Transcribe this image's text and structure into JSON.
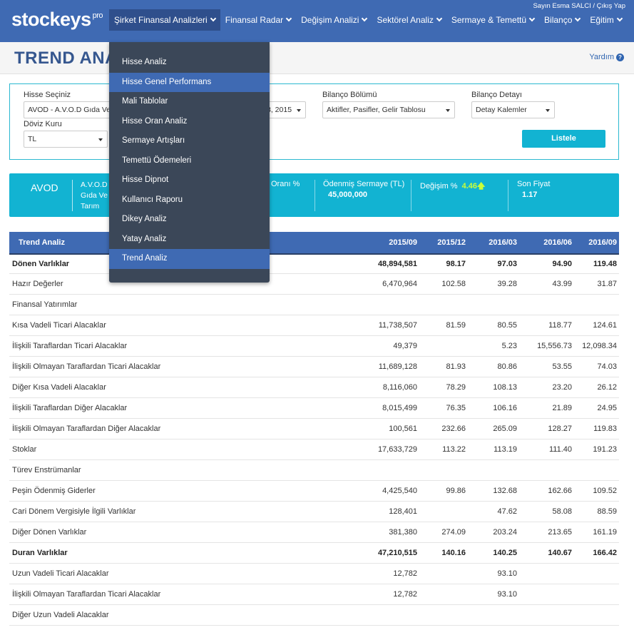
{
  "header": {
    "logo": "stockeys",
    "logo_sup": "pro",
    "user_text": "Sayın Esma SALCI / Çıkış Yap",
    "nav": [
      {
        "label": "Şirket Finansal Analizleri"
      },
      {
        "label": "Finansal Radar"
      },
      {
        "label": "Değişim Analizi"
      },
      {
        "label": "Sektörel Analiz"
      },
      {
        "label": "Sermaye & Temettü"
      },
      {
        "label": "Bilanço"
      },
      {
        "label": "Eğitim"
      }
    ]
  },
  "page": {
    "title": "TREND ANA",
    "help": "Yardım",
    "help_icon": "?"
  },
  "dropdown": {
    "items": [
      {
        "label": "Hisse Analiz"
      },
      {
        "label": "Hisse Genel Performans"
      },
      {
        "label": "Mali Tablolar"
      },
      {
        "label": "Hisse Oran Analiz"
      },
      {
        "label": "Sermaye Artışları"
      },
      {
        "label": "Temettü Ödemeleri"
      },
      {
        "label": "Hisse Dipnot"
      },
      {
        "label": "Kullanıcı Raporu"
      },
      {
        "label": "Dikey Analiz"
      },
      {
        "label": "Yatay Analiz"
      },
      {
        "label": "Trend Analiz"
      }
    ]
  },
  "filters": {
    "hisse_label": "Hisse Seçiniz",
    "hisse_value": "AVOD - A.V.O.D Gıda Ve",
    "period_value": "3, 2015",
    "bolum_label": "Bilanço Bölümü",
    "bolum_value": "Aktifler, Pasifler, Gelir Tablosu",
    "detay_label": "Bilanço Detayı",
    "detay_value": "Detay Kalemler",
    "doviz_label": "Döviz Kuru",
    "doviz_value": "TL",
    "list_button": "Listele"
  },
  "info": {
    "ticker": "AVOD",
    "name": "A.V.O.D Gıda Ve Tarım",
    "oran_label": "Oranı %",
    "sermaye_label": "Ödenmiş Sermaye (TL)",
    "sermaye_value": "45,000,000",
    "degisim_label": "Değişim %",
    "degisim_value": "4.46",
    "fiyat_label": "Son Fiyat",
    "fiyat_value": "1.17"
  },
  "table": {
    "headers": [
      "Trend Analiz",
      "2015/09",
      "2015/12",
      "2016/03",
      "2016/06",
      "2016/09"
    ],
    "rows": [
      {
        "label": "Dönen Varlıklar",
        "bold": true,
        "v": [
          "48,894,581",
          "98.17",
          "97.03",
          "94.90",
          "119.48"
        ]
      },
      {
        "label": "Hazır Değerler",
        "bold": false,
        "v": [
          "6,470,964",
          "102.58",
          "39.28",
          "43.99",
          "31.87"
        ]
      },
      {
        "label": "Finansal Yatırımlar",
        "bold": false,
        "v": [
          "",
          "",
          "",
          "",
          ""
        ]
      },
      {
        "label": "Kısa Vadeli Ticari Alacaklar",
        "bold": false,
        "v": [
          "11,738,507",
          "81.59",
          "80.55",
          "118.77",
          "124.61"
        ]
      },
      {
        "label": "İlişkili Taraflardan Ticari Alacaklar",
        "bold": false,
        "v": [
          "49,379",
          "",
          "5.23",
          "15,556.73",
          "12,098.34"
        ]
      },
      {
        "label": "İlişkili Olmayan Taraflardan Ticari Alacaklar",
        "bold": false,
        "v": [
          "11,689,128",
          "81.93",
          "80.86",
          "53.55",
          "74.03"
        ]
      },
      {
        "label": "Diğer Kısa Vadeli Alacaklar",
        "bold": false,
        "v": [
          "8,116,060",
          "78.29",
          "108.13",
          "23.20",
          "26.12"
        ]
      },
      {
        "label": "İlişkili Taraflardan Diğer Alacaklar",
        "bold": false,
        "v": [
          "8,015,499",
          "76.35",
          "106.16",
          "21.89",
          "24.95"
        ]
      },
      {
        "label": "İlişkili Olmayan Taraflardan Diğer Alacaklar",
        "bold": false,
        "v": [
          "100,561",
          "232.66",
          "265.09",
          "128.27",
          "119.83"
        ]
      },
      {
        "label": "Stoklar",
        "bold": false,
        "v": [
          "17,633,729",
          "113.22",
          "113.19",
          "111.40",
          "191.23"
        ]
      },
      {
        "label": "Türev Enstrümanlar",
        "bold": false,
        "v": [
          "",
          "",
          "",
          "",
          ""
        ]
      },
      {
        "label": "Peşin Ödenmiş Giderler",
        "bold": false,
        "v": [
          "4,425,540",
          "99.86",
          "132.68",
          "162.66",
          "109.52"
        ]
      },
      {
        "label": "Cari Dönem Vergisiyle İlgili Varlıklar",
        "bold": false,
        "v": [
          "128,401",
          "",
          "47.62",
          "58.08",
          "88.59"
        ]
      },
      {
        "label": "Diğer Dönen Varlıklar",
        "bold": false,
        "v": [
          "381,380",
          "274.09",
          "203.24",
          "213.65",
          "161.19"
        ]
      },
      {
        "label": "Duran Varlıklar",
        "bold": true,
        "v": [
          "47,210,515",
          "140.16",
          "140.25",
          "140.67",
          "166.42"
        ]
      },
      {
        "label": "Uzun Vadeli Ticari Alacaklar",
        "bold": false,
        "v": [
          "12,782",
          "",
          "93.10",
          "",
          ""
        ]
      },
      {
        "label": "İlişkili Olmayan Taraflardan Ticari Alacaklar",
        "bold": false,
        "v": [
          "12,782",
          "",
          "93.10",
          "",
          ""
        ]
      },
      {
        "label": "Diğer Uzun Vadeli Alacaklar",
        "bold": false,
        "v": [
          "",
          "",
          "",
          "",
          ""
        ]
      }
    ]
  }
}
